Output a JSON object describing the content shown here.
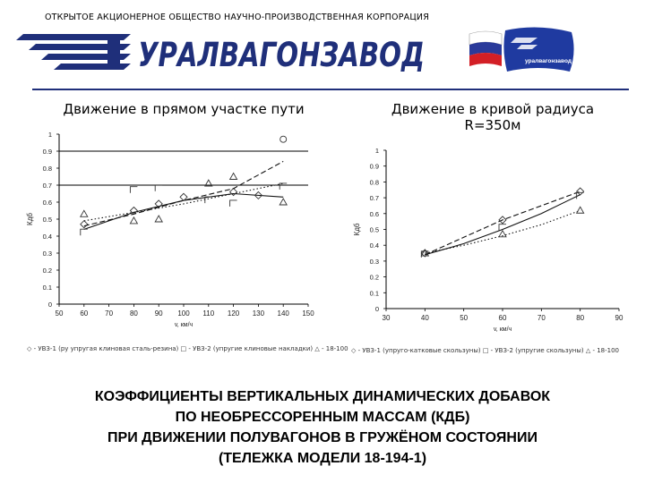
{
  "header": {
    "company": "ОТКРЫТОЕ АКЦИОНЕРНОЕ ОБЩЕСТВО НАУЧНО-ПРОИЗВОДСТВЕННАЯ КОРПОРАЦИЯ",
    "logo_text": "УРАЛВАГОНЗАВОД",
    "flag_label": "уралвагонзавод",
    "colors": {
      "brand_blue": "#1f2f7a",
      "flag_red": "#d31f26"
    }
  },
  "chart_data": [
    {
      "type": "scatter",
      "title": "Движение в прямом участке пути",
      "xlabel": "v, км/ч",
      "ylabel": "Кдб",
      "xlim": [
        50,
        150
      ],
      "ylim": [
        0,
        1
      ],
      "xticks": [
        "50",
        "60",
        "70",
        "80",
        "90",
        "100",
        "110",
        "120",
        "130",
        "140",
        "150"
      ],
      "yticks": [
        "0",
        "0.1",
        "0.2",
        "0.3",
        "0.4",
        "0.5",
        "0.6",
        "0.7",
        "0.8",
        "0.9",
        "1"
      ],
      "hlines": [
        0.7,
        0.9
      ],
      "grid": false,
      "legend_position": "bottom",
      "legend_text": "◇ - УВЗ-1 (ру упругая клиновая сталь-резина)   □ - УВЗ-2 (упругие клиновые накладки)   △ - 18-100",
      "series": [
        {
          "marker": "diamond",
          "line": "solid",
          "x": [
            60,
            80,
            90,
            100,
            120,
            130
          ],
          "y": [
            0.47,
            0.55,
            0.59,
            0.63,
            0.66,
            0.64
          ],
          "fit": [
            [
              60,
              0.44
            ],
            [
              80,
              0.54
            ],
            [
              100,
              0.61
            ],
            [
              120,
              0.65
            ],
            [
              140,
              0.63
            ]
          ]
        },
        {
          "marker": "square",
          "line": "dashed",
          "x": [
            60,
            80,
            90,
            110,
            120,
            140
          ],
          "y": [
            0.42,
            0.67,
            0.68,
            0.61,
            0.59,
            0.69
          ],
          "fit": [
            [
              60,
              0.46
            ],
            [
              80,
              0.53
            ],
            [
              100,
              0.61
            ],
            [
              120,
              0.68
            ],
            [
              140,
              0.84
            ]
          ]
        },
        {
          "marker": "triangle",
          "line": "dotted",
          "x": [
            60,
            80,
            90,
            110,
            120,
            140
          ],
          "y": [
            0.53,
            0.49,
            0.5,
            0.71,
            0.75,
            0.6
          ],
          "fit": [
            [
              60,
              0.49
            ],
            [
              80,
              0.54
            ],
            [
              100,
              0.59
            ],
            [
              120,
              0.65
            ],
            [
              140,
              0.71
            ]
          ]
        },
        {
          "marker": "circle",
          "line": "none",
          "x": [
            140
          ],
          "y": [
            0.97
          ]
        }
      ]
    },
    {
      "type": "scatter",
      "title": "Движение в кривой радиуса R=350м",
      "xlabel": "v, км/ч",
      "ylabel": "Кдб",
      "xlim": [
        30,
        90
      ],
      "ylim": [
        0,
        1
      ],
      "xticks": [
        "30",
        "40",
        "50",
        "60",
        "70",
        "80",
        "90"
      ],
      "yticks": [
        "0",
        "0.1",
        "0.2",
        "0.3",
        "0.4",
        "0.5",
        "0.6",
        "0.7",
        "0.8",
        "0.9",
        "1"
      ],
      "grid": false,
      "legend_position": "bottom",
      "legend_text": "◇ - УВЗ-1 (упруго-катковые скользуны)   □ - УВЗ-2 (упругие скользуны)   △ - 18-100",
      "series": [
        {
          "marker": "diamond",
          "line": "dashed",
          "x": [
            40,
            60,
            80
          ],
          "y": [
            0.35,
            0.56,
            0.74
          ],
          "fit": [
            [
              40,
              0.34
            ],
            [
              50,
              0.45
            ],
            [
              60,
              0.56
            ],
            [
              70,
              0.65
            ],
            [
              80,
              0.74
            ]
          ]
        },
        {
          "marker": "square",
          "line": "solid",
          "x": [
            40,
            60,
            80
          ],
          "y": [
            0.34,
            0.51,
            0.71
          ],
          "fit": [
            [
              40,
              0.34
            ],
            [
              50,
              0.41
            ],
            [
              60,
              0.5
            ],
            [
              70,
              0.6
            ],
            [
              80,
              0.72
            ]
          ]
        },
        {
          "marker": "triangle",
          "line": "dotted",
          "x": [
            40,
            60,
            80
          ],
          "y": [
            0.35,
            0.47,
            0.62
          ],
          "fit": [
            [
              40,
              0.35
            ],
            [
              50,
              0.4
            ],
            [
              60,
              0.46
            ],
            [
              70,
              0.53
            ],
            [
              80,
              0.62
            ]
          ]
        }
      ]
    }
  ],
  "bottom_title": {
    "line1": "КОЭФФИЦИЕНТЫ ВЕРТИКАЛЬНЫХ ДИНАМИЧЕСКИХ ДОБАВОК",
    "line2": "ПО НЕОБРЕССОРЕННЫМ МАССАМ (КДБ)",
    "line3": "ПРИ ДВИЖЕНИИ ПОЛУВАГОНОВ В ГРУЖЁНОМ СОСТОЯНИИ",
    "line4": "(ТЕЛЕЖКА МОДЕЛИ 18-194-1)"
  }
}
